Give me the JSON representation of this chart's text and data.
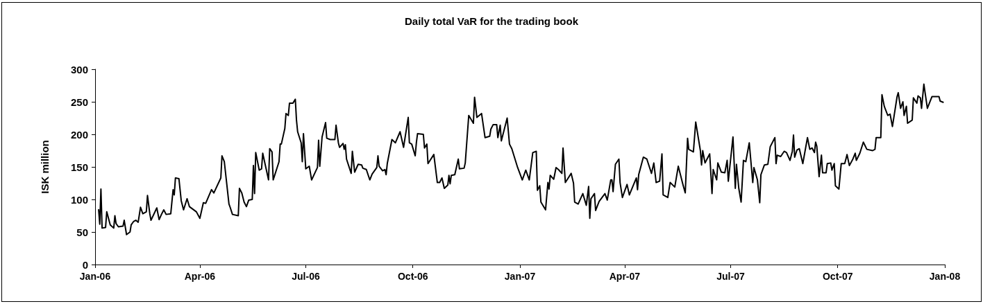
{
  "chart_data": {
    "type": "line",
    "title": "Daily total VaR for the trading book",
    "ylabel": "ISK million",
    "x": [
      "2006-01-04",
      "2006-01-05",
      "2006-01-06",
      "2006-01-07",
      "2006-01-10",
      "2006-01-11",
      "2006-01-14",
      "2006-01-17",
      "2006-01-18",
      "2006-01-19",
      "2006-01-21",
      "2006-01-25",
      "2006-01-26",
      "2006-01-28",
      "2006-01-31",
      "2006-02-01",
      "2006-02-03",
      "2006-02-05",
      "2006-02-07",
      "2006-02-09",
      "2006-02-11",
      "2006-02-14",
      "2006-02-15",
      "2006-02-17",
      "2006-02-18",
      "2006-02-23",
      "2006-02-25",
      "2006-02-27",
      "2006-03-01",
      "2006-03-03",
      "2006-03-07",
      "2006-03-09",
      "2006-03-10",
      "2006-03-11",
      "2006-03-14",
      "2006-03-16",
      "2006-03-18",
      "2006-03-21",
      "2006-03-23",
      "2006-03-26",
      "2006-03-29",
      "2006-04-01",
      "2006-04-04",
      "2006-04-06",
      "2006-04-11",
      "2006-04-13",
      "2006-04-19",
      "2006-04-20",
      "2006-04-22",
      "2006-04-26",
      "2006-04-27",
      "2006-04-29",
      "2006-05-04",
      "2006-05-05",
      "2006-05-07",
      "2006-05-09",
      "2006-05-11",
      "2006-05-13",
      "2006-05-16",
      "2006-05-17",
      "2006-05-18",
      "2006-05-19",
      "2006-05-22",
      "2006-05-24",
      "2006-05-25",
      "2006-05-30",
      "2006-05-31",
      "2006-06-02",
      "2006-06-03",
      "2006-06-08",
      "2006-06-09",
      "2006-06-10",
      "2006-06-13",
      "2006-06-14",
      "2006-06-16",
      "2006-06-17",
      "2006-06-20",
      "2006-06-22",
      "2006-06-23",
      "2006-06-24",
      "2006-06-27",
      "2006-06-28",
      "2006-06-29",
      "2006-07-01",
      "2006-07-04",
      "2006-07-06",
      "2006-07-11",
      "2006-07-12",
      "2006-07-13",
      "2006-07-15",
      "2006-07-18",
      "2006-07-19",
      "2006-07-22",
      "2006-07-26",
      "2006-07-27",
      "2006-07-29",
      "2006-07-30",
      "2006-08-02",
      "2006-08-03",
      "2006-08-04",
      "2006-08-05",
      "2006-08-09",
      "2006-08-10",
      "2006-08-12",
      "2006-08-15",
      "2006-08-18",
      "2006-08-19",
      "2006-08-22",
      "2006-08-25",
      "2006-08-27",
      "2006-08-31",
      "2006-09-01",
      "2006-09-02",
      "2006-09-05",
      "2006-09-07",
      "2006-09-08",
      "2006-09-09",
      "2006-09-13",
      "2006-09-16",
      "2006-09-20",
      "2006-09-23",
      "2006-09-27",
      "2006-09-28",
      "2006-09-30",
      "2006-10-03",
      "2006-10-04",
      "2006-10-05",
      "2006-10-10",
      "2006-10-11",
      "2006-10-13",
      "2006-10-14",
      "2006-10-19",
      "2006-10-22",
      "2006-10-24",
      "2006-10-26",
      "2006-10-28",
      "2006-10-31",
      "2006-11-01",
      "2006-11-02",
      "2006-11-03",
      "2006-11-06",
      "2006-11-09",
      "2006-11-10",
      "2006-11-14",
      "2006-11-15",
      "2006-11-18",
      "2006-11-22",
      "2006-11-23",
      "2006-11-25",
      "2006-11-29",
      "2006-12-02",
      "2006-12-06",
      "2006-12-07",
      "2006-12-09",
      "2006-12-12",
      "2006-12-13",
      "2006-12-15",
      "2006-12-16",
      "2006-12-21",
      "2006-12-23",
      "2006-12-25",
      "2006-12-30",
      "2007-01-03",
      "2007-01-06",
      "2007-01-09",
      "2007-01-12",
      "2007-01-15",
      "2007-01-16",
      "2007-01-18",
      "2007-01-19",
      "2007-01-23",
      "2007-01-25",
      "2007-01-26",
      "2007-01-27",
      "2007-01-30",
      "2007-02-01",
      "2007-02-03",
      "2007-02-06",
      "2007-02-07",
      "2007-02-09",
      "2007-02-14",
      "2007-02-16",
      "2007-02-17",
      "2007-02-20",
      "2007-02-22",
      "2007-02-24",
      "2007-02-27",
      "2007-03-01",
      "2007-03-02",
      "2007-03-03",
      "2007-03-06",
      "2007-03-07",
      "2007-03-10",
      "2007-03-15",
      "2007-03-17",
      "2007-03-20",
      "2007-03-21",
      "2007-03-22",
      "2007-03-24",
      "2007-03-27",
      "2007-03-28",
      "2007-03-30",
      "2007-04-03",
      "2007-04-05",
      "2007-04-11",
      "2007-04-12",
      "2007-04-13",
      "2007-04-17",
      "2007-04-20",
      "2007-04-24",
      "2007-04-26",
      "2007-04-28",
      "2007-05-01",
      "2007-05-03",
      "2007-05-04",
      "2007-05-08",
      "2007-05-10",
      "2007-05-14",
      "2007-05-17",
      "2007-05-21",
      "2007-05-23",
      "2007-05-25",
      "2007-05-26",
      "2007-05-30",
      "2007-06-01",
      "2007-06-05",
      "2007-06-06",
      "2007-06-07",
      "2007-06-09",
      "2007-06-13",
      "2007-06-15",
      "2007-06-16",
      "2007-06-19",
      "2007-06-20",
      "2007-06-23",
      "2007-06-26",
      "2007-06-28",
      "2007-06-29",
      "2007-07-03",
      "2007-07-05",
      "2007-07-06",
      "2007-07-08",
      "2007-07-10",
      "2007-07-12",
      "2007-07-14",
      "2007-07-17",
      "2007-07-20",
      "2007-07-21",
      "2007-07-24",
      "2007-07-26",
      "2007-07-27",
      "2007-07-30",
      "2007-08-02",
      "2007-08-04",
      "2007-08-08",
      "2007-08-09",
      "2007-08-10",
      "2007-08-13",
      "2007-08-16",
      "2007-08-18",
      "2007-08-21",
      "2007-08-23",
      "2007-08-24",
      "2007-08-25",
      "2007-08-27",
      "2007-08-29",
      "2007-09-01",
      "2007-09-05",
      "2007-09-07",
      "2007-09-09",
      "2007-09-11",
      "2007-09-12",
      "2007-09-13",
      "2007-09-15",
      "2007-09-17",
      "2007-09-18",
      "2007-09-21",
      "2007-09-22",
      "2007-09-25",
      "2007-09-26",
      "2007-09-28",
      "2007-09-29",
      "2007-10-02",
      "2007-10-04",
      "2007-10-07",
      "2007-10-09",
      "2007-10-11",
      "2007-10-14",
      "2007-10-16",
      "2007-10-17",
      "2007-10-20",
      "2007-10-23",
      "2007-10-26",
      "2007-10-31",
      "2007-11-02",
      "2007-11-03",
      "2007-11-07",
      "2007-11-08",
      "2007-11-10",
      "2007-11-13",
      "2007-11-15",
      "2007-11-17",
      "2007-11-21",
      "2007-11-22",
      "2007-11-24",
      "2007-11-26",
      "2007-11-27",
      "2007-11-29",
      "2007-11-30",
      "2007-12-04",
      "2007-12-05",
      "2007-12-08",
      "2007-12-09",
      "2007-12-11",
      "2007-12-12",
      "2007-12-14",
      "2007-12-17",
      "2007-12-21",
      "2007-12-27",
      "2007-12-28",
      "2007-12-31"
    ],
    "series": [
      {
        "color": "#000000",
        "values": [
          85,
          62,
          116,
          56,
          57,
          81,
          61,
          56,
          75,
          63,
          58,
          59,
          68,
          46,
          50,
          61,
          66,
          68,
          65,
          88,
          78,
          81,
          106,
          78,
          68,
          87,
          69,
          77,
          84,
          77,
          78,
          115,
          107,
          133,
          132,
          98,
          84,
          101,
          89,
          85,
          81,
          71,
          95,
          94,
          115,
          110,
          133,
          167,
          158,
          93,
          88,
          77,
          75,
          117,
          110,
          96,
          89,
          99,
          100,
          152,
          109,
          172,
          145,
          147,
          171,
          130,
          178,
          173,
          130,
          158,
          185,
          185,
          209,
          232,
          229,
          248,
          248,
          254,
          222,
          204,
          187,
          158,
          201,
          147,
          151,
          130,
          149,
          191,
          151,
          196,
          218,
          194,
          192,
          192,
          214,
          187,
          180,
          186,
          177,
          184,
          162,
          140,
          174,
          142,
          154,
          153,
          148,
          146,
          130,
          139,
          149,
          167,
          151,
          144,
          146,
          138,
          155,
          192,
          187,
          204,
          180,
          226,
          187,
          185,
          167,
          187,
          201,
          200,
          179,
          185,
          155,
          169,
          126,
          126,
          133,
          117,
          122,
          137,
          124,
          137,
          138,
          162,
          147,
          148,
          156,
          229,
          217,
          257,
          226,
          232,
          195,
          197,
          208,
          215,
          215,
          195,
          214,
          190,
          225,
          185,
          178,
          149,
          130,
          145,
          130,
          172,
          174,
          114,
          121,
          96,
          84,
          126,
          116,
          137,
          131,
          149,
          146,
          140,
          179,
          126,
          140,
          125,
          96,
          93,
          101,
          109,
          91,
          120,
          71,
          101,
          109,
          83,
          97,
          109,
          99,
          130,
          130,
          112,
          154,
          162,
          126,
          103,
          123,
          107,
          133,
          115,
          138,
          165,
          162,
          140,
          156,
          126,
          128,
          170,
          107,
          103,
          126,
          119,
          151,
          123,
          110,
          194,
          177,
          173,
          219,
          175,
          153,
          175,
          156,
          170,
          109,
          146,
          130,
          156,
          142,
          141,
          160,
          128,
          196,
          117,
          154,
          117,
          96,
          160,
          158,
          187,
          126,
          149,
          130,
          95,
          138,
          153,
          154,
          181,
          195,
          155,
          168,
          166,
          174,
          172,
          160,
          174,
          199,
          165,
          176,
          178,
          155,
          195,
          177,
          179,
          172,
          188,
          182,
          135,
          168,
          141,
          141,
          155,
          156,
          145,
          155,
          121,
          116,
          155,
          155,
          169,
          152,
          162,
          171,
          160,
          171,
          188,
          177,
          175,
          177,
          195,
          195,
          261,
          243,
          229,
          231,
          212,
          258,
          264,
          240,
          250,
          229,
          243,
          217,
          222,
          256,
          248,
          259,
          256,
          240,
          277,
          240,
          258,
          258,
          251,
          249
        ]
      }
    ],
    "xlim": [
      "2006-01-01",
      "2008-01-01"
    ],
    "xticks": [
      {
        "value": "2006-01-01",
        "label": "Jan-06"
      },
      {
        "value": "2006-04-01",
        "label": "Apr-06"
      },
      {
        "value": "2006-07-01",
        "label": "Jul-06"
      },
      {
        "value": "2006-10-01",
        "label": "Oct-06"
      },
      {
        "value": "2007-01-01",
        "label": "Jan-07"
      },
      {
        "value": "2007-04-01",
        "label": "Apr-07"
      },
      {
        "value": "2007-07-01",
        "label": "Jul-07"
      },
      {
        "value": "2007-10-01",
        "label": "Oct-07"
      },
      {
        "value": "2008-01-01",
        "label": "Jan-08"
      }
    ],
    "ylim": [
      0,
      300
    ],
    "yticks": [
      0,
      50,
      100,
      150,
      200,
      250,
      300
    ],
    "grid": false,
    "marker": "none",
    "line_style": "solid"
  }
}
